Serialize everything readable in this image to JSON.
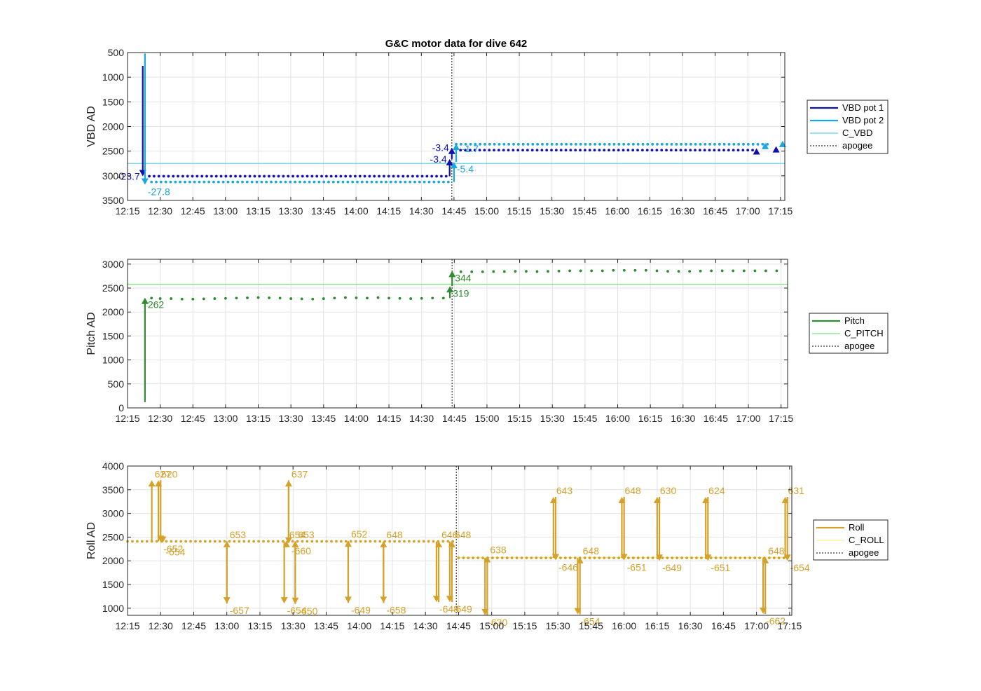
{
  "chart_data": [
    {
      "type": "line",
      "title": "G&C motor data for dive 642",
      "ylabel": "VBD AD",
      "y_reversed": true,
      "ylim": [
        500,
        3500
      ],
      "yticks": [
        500,
        1000,
        1500,
        2000,
        2500,
        3000,
        3500
      ],
      "xlim": [
        "12:15",
        "17:17"
      ],
      "xticks": [
        "12:15",
        "12:30",
        "12:45",
        "13:00",
        "13:15",
        "13:30",
        "13:45",
        "14:00",
        "14:15",
        "14:30",
        "14:45",
        "15:00",
        "15:15",
        "15:30",
        "15:45",
        "16:00",
        "16:15",
        "16:30",
        "16:45",
        "17:00",
        "17:15"
      ],
      "grid": true,
      "legend_position": "outside-right",
      "reference_lines": [
        {
          "name": "C_VBD",
          "value": 2750,
          "color": "#5fd0e8"
        }
      ],
      "apogee": "14:44",
      "series": [
        {
          "name": "VBD pot 1",
          "color": "#1010b0",
          "dot_start": "12:25",
          "dot_end": "14:43",
          "dot_value": 3010,
          "dot_start2": "14:48",
          "dot_end2": "17:04",
          "dot_value2": 2480
        },
        {
          "name": "VBD pot 2",
          "color": "#1aa6e0",
          "dot_start": "12:26",
          "dot_end": "14:43",
          "dot_value": 3125,
          "dot_start2": "14:46",
          "dot_end2": "17:10",
          "dot_value2": 2360
        }
      ],
      "moves": [
        {
          "series": 0,
          "t": "12:22",
          "from": 770,
          "to": 3010,
          "label": "-23.7",
          "label_side": "left"
        },
        {
          "series": 1,
          "t": "12:23",
          "from": 520,
          "to": 3180,
          "label": "-27.8",
          "label_side": "below-right"
        },
        {
          "series": 0,
          "t": "14:43",
          "from": 3010,
          "to": 2660,
          "label": "-3.4",
          "label_side": "left"
        },
        {
          "series": 0,
          "t": "14:44",
          "from": 2660,
          "to": 2430,
          "label": "-3.4",
          "label_side": "left"
        },
        {
          "series": 1,
          "t": "14:45",
          "from": 3125,
          "to": 2720,
          "label": "-5.4",
          "label_side": "below-right"
        },
        {
          "series": 1,
          "t": "14:46",
          "from": 2720,
          "to": 2350,
          "label": "-1.7",
          "label_side": "right"
        },
        {
          "series": 0,
          "t": "17:04",
          "from": 2480,
          "to": 2440,
          "label": "",
          "label_side": "none"
        },
        {
          "series": 1,
          "t": "17:08",
          "from": 2360,
          "to": 2330,
          "label": "",
          "label_side": "none"
        },
        {
          "series": 0,
          "t": "17:13",
          "from": 2480,
          "to": 2400,
          "label": "",
          "label_side": "none"
        },
        {
          "series": 1,
          "t": "17:16",
          "from": 2360,
          "to": 2290,
          "label": "",
          "label_side": "none"
        }
      ],
      "legend": [
        "VBD pot 1",
        "VBD pot 2",
        "C_VBD",
        "apogee"
      ]
    },
    {
      "type": "line",
      "title": "",
      "ylabel": "Pitch AD",
      "ylim": [
        0,
        3100
      ],
      "yticks": [
        0,
        500,
        1000,
        1500,
        2000,
        2500,
        3000
      ],
      "xlim": [
        "12:15",
        "17:18"
      ],
      "xticks": [
        "12:15",
        "12:30",
        "12:45",
        "13:00",
        "13:15",
        "13:30",
        "13:45",
        "14:00",
        "14:15",
        "14:30",
        "14:45",
        "15:00",
        "15:15",
        "15:30",
        "15:45",
        "16:00",
        "16:15",
        "16:30",
        "16:45",
        "17:00",
        "17:15"
      ],
      "grid": true,
      "legend_position": "outside-right",
      "reference_lines": [
        {
          "name": "C_PITCH",
          "value": 2580,
          "color": "#7ee07e"
        }
      ],
      "apogee": "14:44",
      "series": [
        {
          "name": "Pitch",
          "color": "#2e8b2e",
          "points": [
            [
              "12:26",
              2290
            ],
            [
              "12:30",
              2280
            ],
            [
              "12:35",
              2280
            ],
            [
              "12:40",
              2270
            ],
            [
              "12:45",
              2270
            ],
            [
              "12:50",
              2275
            ],
            [
              "12:55",
              2280
            ],
            [
              "13:00",
              2285
            ],
            [
              "13:05",
              2290
            ],
            [
              "13:10",
              2295
            ],
            [
              "13:15",
              2300
            ],
            [
              "13:20",
              2295
            ],
            [
              "13:25",
              2290
            ],
            [
              "13:30",
              2280
            ],
            [
              "13:35",
              2275
            ],
            [
              "13:40",
              2270
            ],
            [
              "13:45",
              2280
            ],
            [
              "13:50",
              2290
            ],
            [
              "13:55",
              2300
            ],
            [
              "14:00",
              2295
            ],
            [
              "14:05",
              2290
            ],
            [
              "14:10",
              2300
            ],
            [
              "14:15",
              2290
            ],
            [
              "14:20",
              2285
            ],
            [
              "14:25",
              2280
            ],
            [
              "14:30",
              2285
            ],
            [
              "14:35",
              2290
            ],
            [
              "14:40",
              2290
            ],
            [
              "14:48",
              2840
            ],
            [
              "14:53",
              2840
            ],
            [
              "14:58",
              2840
            ],
            [
              "15:03",
              2845
            ],
            [
              "15:08",
              2845
            ],
            [
              "15:13",
              2850
            ],
            [
              "15:18",
              2850
            ],
            [
              "15:23",
              2845
            ],
            [
              "15:28",
              2850
            ],
            [
              "15:33",
              2855
            ],
            [
              "15:38",
              2860
            ],
            [
              "15:43",
              2860
            ],
            [
              "15:48",
              2860
            ],
            [
              "15:53",
              2860
            ],
            [
              "15:58",
              2870
            ],
            [
              "16:03",
              2870
            ],
            [
              "16:08",
              2870
            ],
            [
              "16:13",
              2870
            ],
            [
              "16:18",
              2860
            ],
            [
              "16:23",
              2850
            ],
            [
              "16:28",
              2850
            ],
            [
              "16:33",
              2850
            ],
            [
              "16:38",
              2855
            ],
            [
              "16:43",
              2860
            ],
            [
              "16:48",
              2860
            ],
            [
              "16:53",
              2860
            ],
            [
              "16:58",
              2860
            ],
            [
              "17:03",
              2860
            ],
            [
              "17:08",
              2860
            ],
            [
              "17:13",
              2860
            ]
          ]
        },
        {
          "name": "C_PITCH",
          "color": "#7ee07e"
        }
      ],
      "moves": [
        {
          "t": "12:23",
          "from": 120,
          "to": 2300,
          "label": "262",
          "label_side": "below-right"
        },
        {
          "t": "14:43",
          "from": 2290,
          "to": 2540,
          "label": "319",
          "label_side": "below-right"
        },
        {
          "t": "14:44",
          "from": 2540,
          "to": 2860,
          "label": "344",
          "label_side": "below-right"
        }
      ],
      "legend": [
        "Pitch",
        "C_PITCH",
        "apogee"
      ]
    },
    {
      "type": "line",
      "title": "",
      "ylabel": "Roll AD",
      "ylim": [
        850,
        4000
      ],
      "yticks": [
        1000,
        1500,
        2000,
        2500,
        3000,
        3500,
        4000
      ],
      "xlim": [
        "12:15",
        "17:16"
      ],
      "xticks": [
        "12:15",
        "12:30",
        "12:45",
        "13:00",
        "13:15",
        "13:30",
        "13:45",
        "14:00",
        "14:15",
        "14:30",
        "14:45",
        "15:00",
        "15:15",
        "15:30",
        "15:45",
        "16:00",
        "16:15",
        "16:30",
        "16:45",
        "17:00",
        "17:15"
      ],
      "grid": true,
      "legend_position": "outside-right",
      "reference_lines": [
        {
          "name": "C_ROLL",
          "value": 2070,
          "color": "#fff08a",
          "from": "14:44",
          "to": "17:16"
        }
      ],
      "apogee": "14:44",
      "series": [
        {
          "name": "Roll",
          "color": "#d4a22a",
          "dot_start": "12:15",
          "dot_end": "14:43",
          "dot_value": 2410,
          "dot_start2": "14:45",
          "dot_end2": "17:14",
          "dot_value2": 2060
        }
      ],
      "moves": [
        {
          "t": "12:26",
          "from": 2410,
          "to": 3700,
          "label": "627",
          "label_side": "top-right"
        },
        {
          "t": "12:29",
          "from": 2410,
          "to": 3700,
          "label": "620",
          "label_side": "top-right"
        },
        {
          "t": "12:30",
          "from": 3700,
          "to": 2400,
          "label": "-652",
          "label_side": "below-right"
        },
        {
          "t": "12:31",
          "from": 2410,
          "to": 2380,
          "label": "-654",
          "label_side": "below-right-2"
        },
        {
          "t": "13:00",
          "from": 2410,
          "to": 1100,
          "label": "-657",
          "label_side": "below-right"
        },
        {
          "t": "13:00",
          "from": 1100,
          "to": 2420,
          "label": "653",
          "label_side": "top-right"
        },
        {
          "t": "13:26",
          "from": 2410,
          "to": 1100,
          "label": "-654",
          "label_side": "below-right"
        },
        {
          "t": "13:27",
          "from": 2410,
          "to": 2420,
          "label": "654",
          "label_side": "top-right"
        },
        {
          "t": "13:28",
          "from": 2410,
          "to": 3700,
          "label": "637",
          "label_side": "top-right"
        },
        {
          "t": "13:28",
          "from": 3700,
          "to": 2360,
          "label": "-660",
          "label_side": "below-right"
        },
        {
          "t": "13:31",
          "from": 2410,
          "to": 1090,
          "label": "-650",
          "label_side": "below-right"
        },
        {
          "t": "13:31",
          "from": 1090,
          "to": 2420,
          "label": "653",
          "label_side": "top-right"
        },
        {
          "t": "13:55",
          "from": 2410,
          "to": 1110,
          "label": "-649",
          "label_side": "below-right"
        },
        {
          "t": "13:55",
          "from": 1110,
          "to": 2430,
          "label": "652",
          "label_side": "top-right"
        },
        {
          "t": "14:11",
          "from": 2410,
          "to": 1110,
          "label": "-658",
          "label_side": "below-right"
        },
        {
          "t": "14:11",
          "from": 1110,
          "to": 2420,
          "label": "648",
          "label_side": "top-right"
        },
        {
          "t": "14:35",
          "from": 2410,
          "to": 1130,
          "label": "-648",
          "label_side": "below-right"
        },
        {
          "t": "14:36",
          "from": 1130,
          "to": 2420,
          "label": "646",
          "label_side": "top-right"
        },
        {
          "t": "14:41",
          "from": 2410,
          "to": 1130,
          "label": "-649",
          "label_side": "below-right"
        },
        {
          "t": "14:42",
          "from": 1130,
          "to": 2420,
          "label": "648",
          "label_side": "top-right"
        },
        {
          "t": "14:57",
          "from": 2060,
          "to": 850,
          "label": "-630",
          "label_side": "below-right"
        },
        {
          "t": "14:58",
          "from": 850,
          "to": 2100,
          "label": "638",
          "label_side": "top-right"
        },
        {
          "t": "15:28",
          "from": 2060,
          "to": 3350,
          "label": "643",
          "label_side": "top-right"
        },
        {
          "t": "15:29",
          "from": 3350,
          "to": 2010,
          "label": "-646",
          "label_side": "below-right"
        },
        {
          "t": "15:39",
          "from": 2060,
          "to": 870,
          "label": "-654",
          "label_side": "below-right"
        },
        {
          "t": "15:40",
          "from": 870,
          "to": 2080,
          "label": "648",
          "label_side": "top-right"
        },
        {
          "t": "15:59",
          "from": 2060,
          "to": 3350,
          "label": "648",
          "label_side": "top-right"
        },
        {
          "t": "16:00",
          "from": 3350,
          "to": 2010,
          "label": "-651",
          "label_side": "below-right"
        },
        {
          "t": "16:15",
          "from": 2060,
          "to": 3350,
          "label": "630",
          "label_side": "top-right"
        },
        {
          "t": "16:16",
          "from": 3350,
          "to": 2000,
          "label": "-649",
          "label_side": "below-right"
        },
        {
          "t": "16:37",
          "from": 2060,
          "to": 3350,
          "label": "624",
          "label_side": "top-right"
        },
        {
          "t": "16:38",
          "from": 3350,
          "to": 2000,
          "label": "-651",
          "label_side": "below-right"
        },
        {
          "t": "17:03",
          "from": 2060,
          "to": 880,
          "label": "-662",
          "label_side": "below-right"
        },
        {
          "t": "17:04",
          "from": 880,
          "to": 2080,
          "label": "648",
          "label_side": "top-right"
        },
        {
          "t": "17:13",
          "from": 2060,
          "to": 3350,
          "label": "631",
          "label_side": "top-right"
        },
        {
          "t": "17:14",
          "from": 3350,
          "to": 2000,
          "label": "-654",
          "label_side": "below-right"
        }
      ],
      "legend": [
        "Roll",
        "C_ROLL",
        "apogee"
      ]
    }
  ]
}
